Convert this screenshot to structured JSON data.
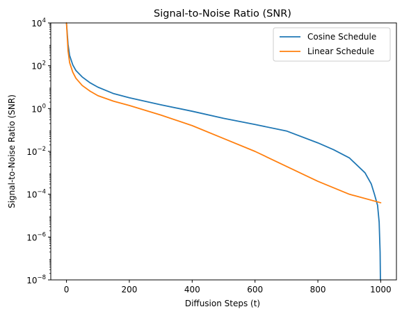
{
  "chart_data": {
    "type": "line",
    "title": "Signal-to-Noise Ratio (SNR)",
    "xlabel": "Diffusion Steps (t)",
    "ylabel": "Signal-to-Noise Ratio (SNR)",
    "xlim": [
      -50,
      1050
    ],
    "ylim": [
      1e-08,
      10000.0
    ],
    "yscale": "log",
    "grid": false,
    "legend_position": "top-right",
    "x_ticks": [
      0,
      200,
      400,
      600,
      800,
      1000
    ],
    "x_tick_labels": [
      "0",
      "200",
      "400",
      "600",
      "800",
      "1000"
    ],
    "y_tick_exponents": [
      4,
      2,
      0,
      -2,
      -4,
      -6,
      -8
    ],
    "series": [
      {
        "name": "Cosine Schedule",
        "color": "#1f77b4",
        "x": [
          0,
          5,
          10,
          20,
          30,
          50,
          75,
          100,
          150,
          200,
          300,
          400,
          500,
          600,
          700,
          800,
          850,
          900,
          950,
          970,
          980,
          990,
          995,
          998,
          999
        ],
        "y": [
          10000,
          1000,
          300,
          110,
          60,
          30,
          16,
          10,
          5,
          3.2,
          1.5,
          0.75,
          0.35,
          0.18,
          0.09,
          0.025,
          0.012,
          0.005,
          0.001,
          0.0003,
          0.0001,
          3e-05,
          5e-06,
          2e-07,
          1e-08
        ]
      },
      {
        "name": "Linear Schedule",
        "color": "#ff7f0e",
        "x": [
          0,
          5,
          10,
          20,
          30,
          50,
          75,
          100,
          150,
          200,
          300,
          400,
          500,
          600,
          700,
          800,
          900,
          1000
        ],
        "y": [
          10000,
          500,
          140,
          50,
          26,
          12,
          6.5,
          4,
          2.2,
          1.4,
          0.5,
          0.16,
          0.04,
          0.01,
          0.002,
          0.0004,
          0.0001,
          4e-05
        ]
      }
    ]
  }
}
